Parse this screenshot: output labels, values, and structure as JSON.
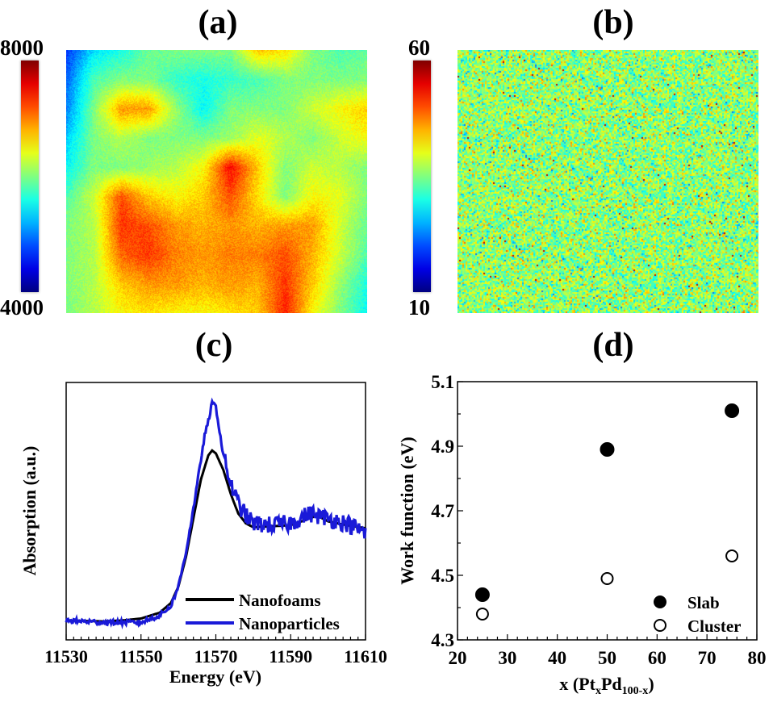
{
  "panel_labels": [
    "(a)",
    "(b)",
    "(c)",
    "(d)"
  ],
  "chart_data": [
    {
      "panel": "(a)",
      "type": "heatmap",
      "colormap": "jet",
      "colorbar": {
        "min": 4000,
        "max": 8000,
        "min_label": "4000",
        "max_label": "8000"
      },
      "grid_coarse": [
        [
          4700,
          5400,
          5600,
          5900,
          6000,
          6000,
          6000,
          6700,
          6600,
          6000,
          5800,
          5900
        ],
        [
          4900,
          5800,
          6000,
          6000,
          5700,
          5600,
          5700,
          5800,
          6000,
          6000,
          6000,
          6000
        ],
        [
          5000,
          6000,
          6900,
          6900,
          6100,
          5500,
          6000,
          6000,
          6000,
          6300,
          6500,
          6700
        ],
        [
          5300,
          6000,
          6200,
          6000,
          6000,
          6000,
          6100,
          6400,
          6200,
          6000,
          6300,
          6500
        ],
        [
          5500,
          6000,
          6000,
          6100,
          6200,
          6500,
          7500,
          6700,
          6000,
          6300,
          6200,
          6000
        ],
        [
          5800,
          6300,
          7200,
          6700,
          6500,
          6700,
          7200,
          6600,
          6000,
          6500,
          6400,
          6000
        ],
        [
          6000,
          6200,
          7300,
          7200,
          6900,
          6800,
          6900,
          6800,
          6900,
          6900,
          6300,
          5900
        ],
        [
          6000,
          6200,
          7100,
          7300,
          7000,
          6900,
          7000,
          7000,
          7200,
          6800,
          6300,
          5800
        ],
        [
          6000,
          6200,
          6700,
          6900,
          6900,
          6800,
          6900,
          6800,
          7300,
          6700,
          6100,
          5600
        ],
        [
          6000,
          6200,
          6500,
          6600,
          6500,
          6500,
          6600,
          6700,
          7400,
          6500,
          6000,
          5500
        ]
      ]
    },
    {
      "panel": "(b)",
      "type": "heatmap",
      "colormap": "jet",
      "colorbar": {
        "min": 10,
        "max": 60,
        "min_label": "10",
        "max_label": "60"
      },
      "mean_value": 36,
      "noise_spread": 6
    },
    {
      "panel": "(c)",
      "type": "line",
      "xlabel": "Energy (eV)",
      "ylabel": "Absorption (a.u.)",
      "xlim": [
        11530,
        11610
      ],
      "ylim": [
        -0.2,
        2.45
      ],
      "xticks": [
        11530,
        11550,
        11570,
        11590,
        11610
      ],
      "xtick_labels": [
        "11530",
        "11550",
        "11570",
        "11590",
        "11610"
      ],
      "legend_position": "bottom-right",
      "series": [
        {
          "name": "Nanofoams",
          "color": "#000000",
          "x": [
            11530,
            11540,
            11545,
            11550,
            11555,
            11558,
            11560,
            11562,
            11564,
            11566,
            11568,
            11569,
            11570,
            11572,
            11574,
            11576,
            11578,
            11580,
            11585,
            11590,
            11595,
            11597,
            11600,
            11605,
            11610
          ],
          "y": [
            0.0,
            -0.01,
            0.0,
            0.02,
            0.08,
            0.18,
            0.35,
            0.65,
            1.05,
            1.45,
            1.7,
            1.75,
            1.72,
            1.55,
            1.3,
            1.1,
            1.0,
            0.96,
            0.97,
            0.98,
            1.05,
            1.08,
            1.02,
            0.98,
            0.95
          ]
        },
        {
          "name": "Nanoparticles",
          "color": "#1a1ad8",
          "x": [
            11530,
            11540,
            11550,
            11555,
            11558,
            11560,
            11562,
            11564,
            11566,
            11567,
            11568,
            11569,
            11570,
            11571,
            11572,
            11574,
            11576,
            11578,
            11580,
            11585,
            11590,
            11595,
            11600,
            11605,
            11610
          ],
          "y": [
            0.0,
            -0.02,
            -0.02,
            0.05,
            0.15,
            0.35,
            0.7,
            1.15,
            1.65,
            1.9,
            2.05,
            2.24,
            2.2,
            1.95,
            1.7,
            1.4,
            1.2,
            1.08,
            1.0,
            0.98,
            1.0,
            1.1,
            1.05,
            1.0,
            0.9
          ]
        }
      ]
    },
    {
      "panel": "(d)",
      "type": "scatter",
      "xlabel": "x (PtxPd100-x)",
      "xlabel_parts": [
        "x (Pt",
        "x",
        "Pd",
        "100-x",
        ")"
      ],
      "ylabel": "Work function (eV)",
      "xlim": [
        20,
        80
      ],
      "ylim": [
        4.3,
        5.1
      ],
      "xticks": [
        20,
        30,
        40,
        50,
        60,
        70,
        80
      ],
      "xtick_labels": [
        "20",
        "30",
        "40",
        "50",
        "60",
        "70",
        "80"
      ],
      "yticks": [
        4.3,
        4.5,
        4.7,
        4.9,
        5.1
      ],
      "ytick_labels": [
        "4.3",
        "4.5",
        "4.7",
        "4.9",
        "5.1"
      ],
      "legend_position": "bottom-right",
      "series": [
        {
          "name": "Slab",
          "marker": "filled-circle",
          "x": [
            25,
            50,
            75
          ],
          "y": [
            4.44,
            4.89,
            5.01
          ]
        },
        {
          "name": "Cluster",
          "marker": "open-circle",
          "x": [
            25,
            50,
            75
          ],
          "y": [
            4.38,
            4.49,
            4.56
          ]
        }
      ]
    }
  ]
}
